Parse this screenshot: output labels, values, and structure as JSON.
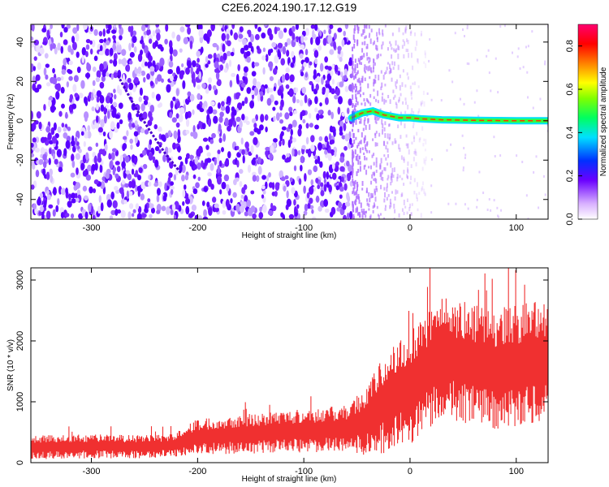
{
  "figure": {
    "title": "C2E6.2024.190.17.12.G19"
  },
  "chart_data": [
    {
      "type": "heatmap",
      "xlabel": "Height of straight line (km)",
      "ylabel": "Frequency (Hz)",
      "xlim": [
        -357,
        130
      ],
      "ylim": [
        -50,
        49
      ],
      "x_ticks": [
        -300,
        -200,
        -100,
        0,
        100
      ],
      "y_ticks": [
        -40,
        -20,
        0,
        20,
        40
      ],
      "noise_region_x": [
        -357,
        -55
      ],
      "noise_fade_x": [
        -55,
        15
      ],
      "ridge": {
        "description_values": "dominant frequency track",
        "x": [
          -55,
          -45,
          -35,
          -25,
          -10,
          0,
          10,
          30,
          60,
          100,
          130
        ],
        "y": [
          1.5,
          4,
          5,
          3,
          1.5,
          1.5,
          1,
          0.5,
          0.2,
          0,
          0
        ]
      },
      "diagonal_streak": {
        "x": [
          -275,
          -260,
          -245,
          -230,
          -215
        ],
        "y": [
          23,
          8,
          -5,
          -17,
          -27
        ]
      },
      "colorbar": {
        "label": "Normalized spectral amplitude",
        "range": [
          0,
          0.9
        ],
        "ticks": [
          0.0,
          0.2,
          0.4,
          0.6,
          0.8
        ]
      }
    },
    {
      "type": "line",
      "xlabel": "Height of straight line (km)",
      "ylabel": "SNR (10 * v/v)",
      "xlim": [
        -357,
        130
      ],
      "ylim": [
        0,
        3200
      ],
      "x_ticks": [
        -300,
        -200,
        -100,
        0,
        100
      ],
      "y_ticks": [
        0,
        1000,
        2000,
        3000
      ],
      "color": "#f03030",
      "envelope": {
        "x": [
          -357,
          -300,
          -250,
          -225,
          -200,
          -150,
          -100,
          -60,
          -40,
          -25,
          -10,
          0,
          10,
          20,
          30,
          50,
          80,
          100,
          130
        ],
        "mid": [
          250,
          270,
          260,
          280,
          420,
          480,
          520,
          560,
          700,
          950,
          1150,
          1250,
          1450,
          1600,
          1750,
          1650,
          1550,
          1600,
          1700
        ],
        "spread": [
          200,
          200,
          190,
          190,
          300,
          330,
          360,
          380,
          600,
          800,
          900,
          950,
          1000,
          1000,
          1000,
          1000,
          1000,
          1000,
          1000
        ]
      }
    }
  ]
}
